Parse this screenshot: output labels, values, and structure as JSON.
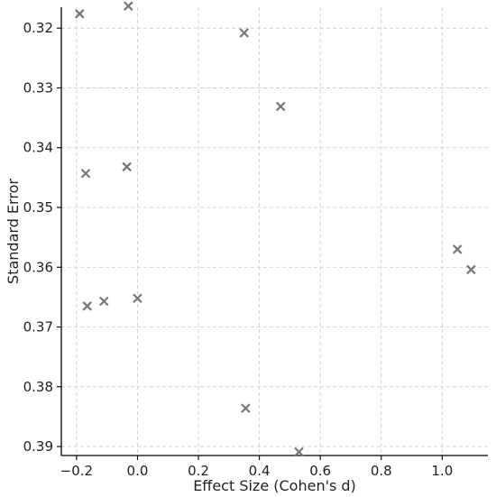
{
  "chart_data": {
    "type": "scatter",
    "title": "",
    "xlabel": "Effect Size (Cohen's d)",
    "ylabel": "Standard Error",
    "xlim": [
      -0.25,
      1.15
    ],
    "ylim": [
      0.3165,
      0.3915
    ],
    "y_inverted": true,
    "grid": true,
    "x_ticks": [
      -0.2,
      0.0,
      0.2,
      0.4,
      0.6,
      0.8,
      1.0
    ],
    "x_tick_labels": [
      "−0.2",
      "0.0",
      "0.2",
      "0.4",
      "0.6",
      "0.8",
      "1.0"
    ],
    "y_ticks": [
      0.32,
      0.33,
      0.34,
      0.35,
      0.36,
      0.37,
      0.38,
      0.39
    ],
    "y_tick_labels": [
      "0.32",
      "0.33",
      "0.34",
      "0.35",
      "0.36",
      "0.37",
      "0.38",
      "0.39"
    ],
    "marker": "x",
    "marker_color": "#777777",
    "points": [
      {
        "x": -0.19,
        "y": 0.3176
      },
      {
        "x": -0.03,
        "y": 0.3163
      },
      {
        "x": 0.35,
        "y": 0.3208
      },
      {
        "x": 0.47,
        "y": 0.3331
      },
      {
        "x": -0.17,
        "y": 0.3443
      },
      {
        "x": -0.035,
        "y": 0.3432
      },
      {
        "x": 1.05,
        "y": 0.357
      },
      {
        "x": 1.095,
        "y": 0.3604
      },
      {
        "x": -0.165,
        "y": 0.3665
      },
      {
        "x": -0.11,
        "y": 0.3657
      },
      {
        "x": 0.0,
        "y": 0.3652
      },
      {
        "x": 0.355,
        "y": 0.3836
      },
      {
        "x": 0.53,
        "y": 0.3909
      }
    ]
  }
}
